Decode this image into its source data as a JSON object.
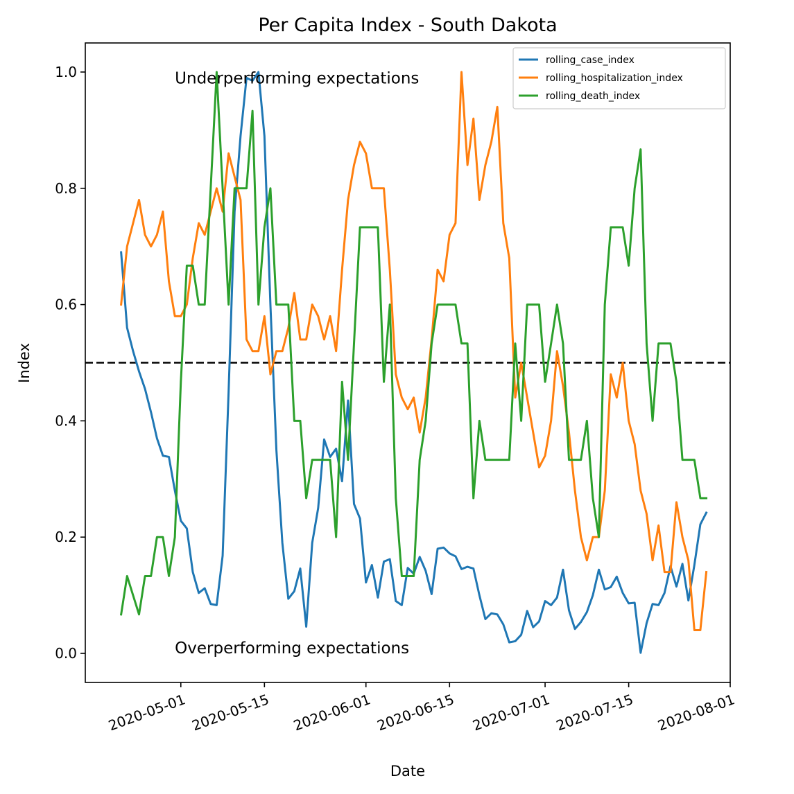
{
  "chart_data": {
    "type": "line",
    "title": "Per Capita Index - South Dakota",
    "xlabel": "Date",
    "ylabel": "Index",
    "x_start": "2020-04-21",
    "x_step_days": 1,
    "xlim": [
      "2020-04-15",
      "2020-08-01"
    ],
    "ylim": [
      -0.05,
      1.05
    ],
    "x_ticks": [
      "2020-05-01",
      "2020-05-15",
      "2020-06-01",
      "2020-06-15",
      "2020-07-01",
      "2020-07-15",
      "2020-08-01"
    ],
    "y_ticks": [
      0.0,
      0.2,
      0.4,
      0.6,
      0.8,
      1.0
    ],
    "y_tick_labels": [
      "0.0",
      "0.2",
      "0.4",
      "0.6",
      "0.8",
      "1.0"
    ],
    "reference_line": {
      "y": 0.5,
      "style": "dashed",
      "color": "#000000"
    },
    "annotations": [
      {
        "text": "Underperforming expectations",
        "x": "2020-04-30",
        "y": 0.98
      },
      {
        "text": "Overperforming expectations",
        "x": "2020-04-30",
        "y": 0.0
      }
    ],
    "legend": {
      "position": "top-right"
    },
    "series": [
      {
        "name": "rolling_case_index",
        "color": "#1f77b4",
        "values": [
          0.69,
          0.56,
          0.52,
          0.485,
          0.455,
          0.415,
          0.37,
          0.34,
          0.338,
          0.28,
          0.228,
          0.215,
          0.14,
          0.104,
          0.112,
          0.085,
          0.083,
          0.168,
          0.45,
          0.76,
          0.89,
          0.99,
          0.985,
          1.0,
          0.89,
          0.6,
          0.35,
          0.19,
          0.094,
          0.107,
          0.146,
          0.046,
          0.19,
          0.25,
          0.368,
          0.338,
          0.352,
          0.296,
          0.435,
          0.257,
          0.232,
          0.122,
          0.152,
          0.096,
          0.158,
          0.162,
          0.09,
          0.083,
          0.147,
          0.137,
          0.166,
          0.142,
          0.102,
          0.18,
          0.182,
          0.172,
          0.167,
          0.145,
          0.149,
          0.146,
          0.1,
          0.059,
          0.069,
          0.067,
          0.05,
          0.019,
          0.021,
          0.032,
          0.073,
          0.045,
          0.055,
          0.09,
          0.083,
          0.096,
          0.144,
          0.074,
          0.042,
          0.054,
          0.071,
          0.1,
          0.144,
          0.11,
          0.114,
          0.132,
          0.104,
          0.086,
          0.087,
          0.001,
          0.052,
          0.085,
          0.083,
          0.104,
          0.15,
          0.115,
          0.154,
          0.091,
          0.152,
          0.222,
          0.242
        ]
      },
      {
        "name": "rolling_hospitalization_index",
        "color": "#ff7f0e",
        "values": [
          0.6,
          0.7,
          0.74,
          0.78,
          0.72,
          0.7,
          0.72,
          0.76,
          0.64,
          0.58,
          0.58,
          0.6,
          0.68,
          0.74,
          0.72,
          0.76,
          0.8,
          0.76,
          0.86,
          0.82,
          0.78,
          0.54,
          0.52,
          0.52,
          0.58,
          0.48,
          0.52,
          0.52,
          0.56,
          0.62,
          0.54,
          0.54,
          0.6,
          0.58,
          0.54,
          0.58,
          0.52,
          0.66,
          0.78,
          0.84,
          0.88,
          0.86,
          0.8,
          0.8,
          0.8,
          0.66,
          0.48,
          0.44,
          0.42,
          0.44,
          0.38,
          0.44,
          0.54,
          0.66,
          0.64,
          0.72,
          0.74,
          1.0,
          0.84,
          0.92,
          0.78,
          0.84,
          0.88,
          0.94,
          0.74,
          0.68,
          0.44,
          0.5,
          0.44,
          0.38,
          0.32,
          0.34,
          0.4,
          0.52,
          0.46,
          0.38,
          0.28,
          0.2,
          0.16,
          0.2,
          0.2,
          0.28,
          0.48,
          0.44,
          0.5,
          0.4,
          0.36,
          0.28,
          0.24,
          0.16,
          0.22,
          0.14,
          0.14,
          0.26,
          0.2,
          0.16,
          0.04,
          0.04,
          0.14
        ]
      },
      {
        "name": "rolling_death_index",
        "color": "#2ca02c",
        "values": [
          0.067,
          0.133,
          0.1,
          0.067,
          0.133,
          0.133,
          0.2,
          0.2,
          0.133,
          0.2,
          0.467,
          0.667,
          0.667,
          0.6,
          0.6,
          0.8,
          1.0,
          0.8,
          0.6,
          0.8,
          0.8,
          0.8,
          0.933,
          0.6,
          0.733,
          0.8,
          0.6,
          0.6,
          0.6,
          0.4,
          0.4,
          0.267,
          0.333,
          0.333,
          0.333,
          0.333,
          0.2,
          0.467,
          0.333,
          0.533,
          0.733,
          0.733,
          0.733,
          0.733,
          0.467,
          0.6,
          0.267,
          0.133,
          0.133,
          0.133,
          0.333,
          0.4,
          0.533,
          0.6,
          0.6,
          0.6,
          0.6,
          0.533,
          0.533,
          0.267,
          0.4,
          0.333,
          0.333,
          0.333,
          0.333,
          0.333,
          0.533,
          0.4,
          0.6,
          0.6,
          0.6,
          0.467,
          0.533,
          0.6,
          0.533,
          0.333,
          0.333,
          0.333,
          0.4,
          0.267,
          0.2,
          0.6,
          0.733,
          0.733,
          0.733,
          0.667,
          0.8,
          0.867,
          0.533,
          0.4,
          0.533,
          0.533,
          0.533,
          0.467,
          0.333,
          0.333,
          0.333,
          0.267,
          0.267
        ]
      }
    ]
  }
}
